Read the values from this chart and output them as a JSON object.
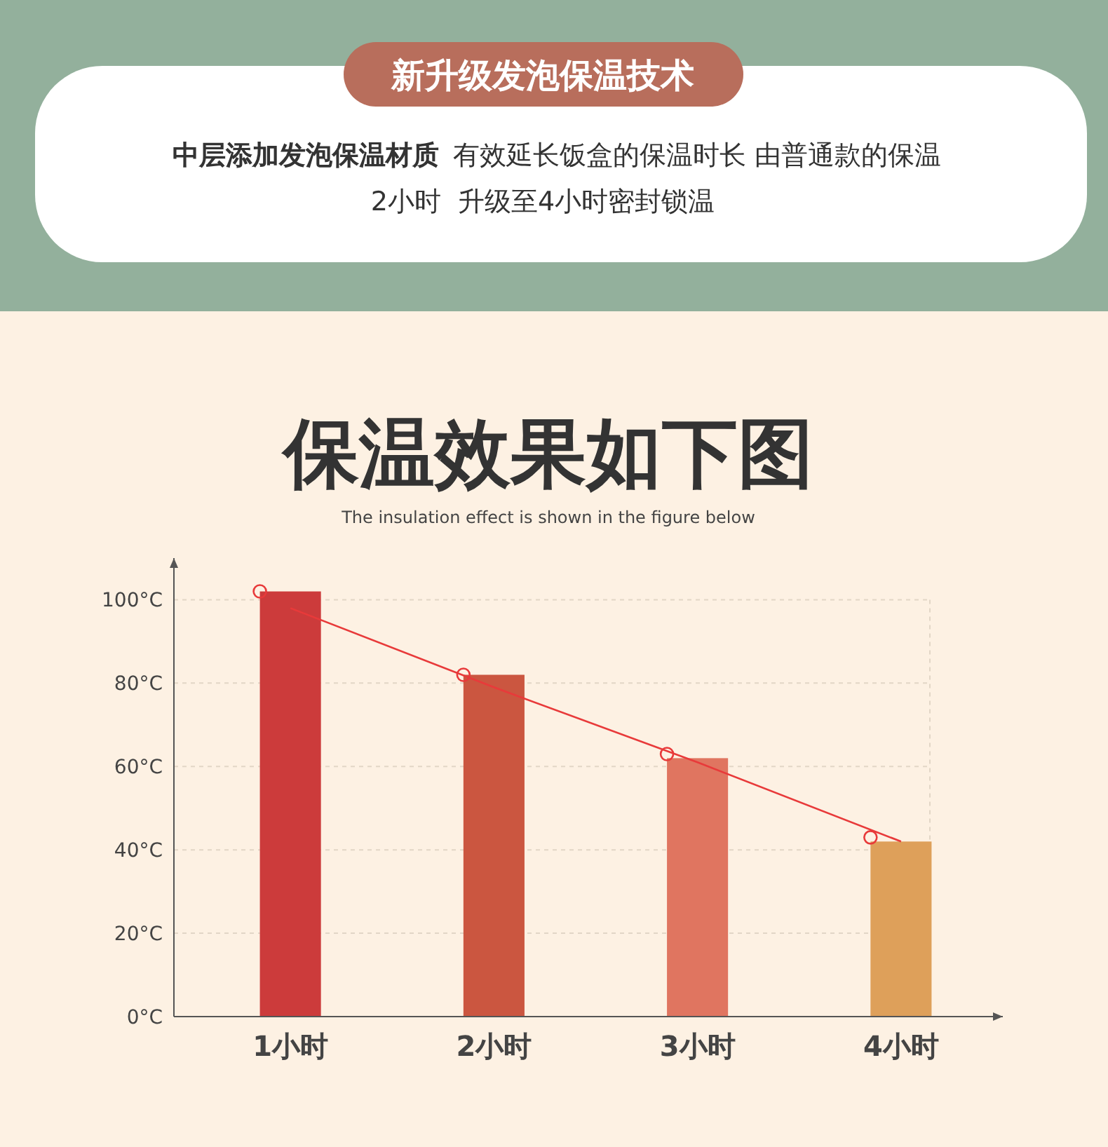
{
  "chart_data": {
    "type": "bar",
    "title": "保温效果如下图",
    "subtitle": "The insulation effect is shown in the figure below",
    "annotations": [
      "新升级发泡保温技术",
      "中层添加发泡保温材质",
      "有效延长饭盒的保温时长 由普通款的保温",
      "2小时  升级至4小时密封锁温"
    ],
    "categories": [
      "1小时",
      "2小时",
      "3小时",
      "4小时"
    ],
    "series": [
      {
        "values": [
          102,
          82,
          62,
          42
        ],
        "colors": [
          "#cc3b3b",
          "#cb5640",
          "#e07560",
          "#dea05a"
        ]
      },
      {
        "type": "scatter",
        "x": [
          "1小时",
          "2小时",
          "3小时",
          "4小时"
        ],
        "values": [
          102,
          82,
          63,
          43
        ],
        "color": "#e83a3a",
        "marker": "circle"
      },
      {
        "type": "line",
        "values": [
          98,
          79,
          61,
          42
        ],
        "color": "#e83a3a",
        "line_style": "solid"
      }
    ],
    "ylim": [
      0,
      110
    ],
    "yticks": [
      {
        "value": 0,
        "label": "0°C"
      },
      {
        "value": 20,
        "label": "20°C"
      },
      {
        "value": 40,
        "label": "40°C"
      },
      {
        "value": 60,
        "label": "60°C"
      },
      {
        "value": 80,
        "label": "80°C"
      },
      {
        "value": 100,
        "label": "100°C"
      }
    ],
    "grid": "y"
  }
}
